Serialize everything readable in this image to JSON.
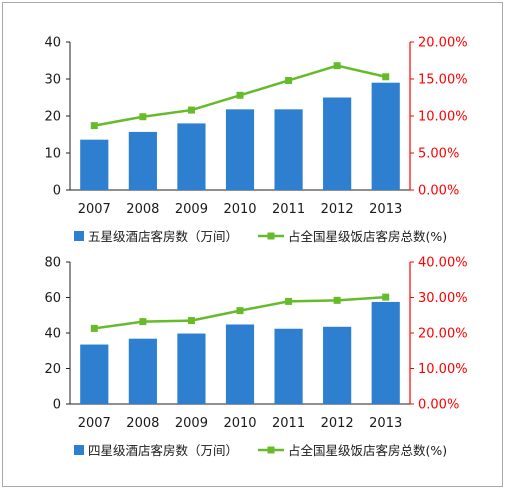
{
  "colors": {
    "bar": "#2e7fd0",
    "line": "#66bb2a",
    "right_axis": "#ff0000",
    "left_axis": "#1a1a1a"
  },
  "chart_data": [
    {
      "type": "bar",
      "categories": [
        "2007",
        "2008",
        "2009",
        "2010",
        "2011",
        "2012",
        "2013"
      ],
      "series": [
        {
          "name": "五星级酒店客房数（万间）",
          "type": "bar",
          "axis": "left",
          "values": [
            13.6,
            15.7,
            18.0,
            21.8,
            21.8,
            25.0,
            29.0
          ]
        },
        {
          "name": "占全国星级饭店客房总数(%)",
          "type": "line",
          "axis": "right",
          "values": [
            8.7,
            9.9,
            10.8,
            12.8,
            14.8,
            16.8,
            15.3
          ]
        }
      ],
      "ylim": [
        0,
        40
      ],
      "yticks": [
        "0",
        "10",
        "20",
        "30",
        "40"
      ],
      "y2lim": [
        0,
        20
      ],
      "y2ticks": [
        "0.00%",
        "5.00%",
        "10.00%",
        "15.00%",
        "20.00%"
      ],
      "legend": "bottom"
    },
    {
      "type": "bar",
      "categories": [
        "2007",
        "2008",
        "2009",
        "2010",
        "2011",
        "2012",
        "2013"
      ],
      "series": [
        {
          "name": "四星级酒店客房数（万间）",
          "type": "bar",
          "axis": "left",
          "values": [
            33.5,
            36.8,
            39.7,
            44.8,
            42.4,
            43.5,
            57.5
          ]
        },
        {
          "name": "占全国星级饭店客房总数(%)",
          "type": "line",
          "axis": "right",
          "values": [
            21.3,
            23.2,
            23.5,
            26.3,
            28.9,
            29.2,
            30.1
          ]
        }
      ],
      "ylim": [
        0,
        80
      ],
      "yticks": [
        "0",
        "20",
        "40",
        "60",
        "80"
      ],
      "y2lim": [
        0,
        40
      ],
      "y2ticks": [
        "0.00%",
        "10.00%",
        "20.00%",
        "30.00%",
        "40.00%"
      ],
      "legend": "bottom"
    }
  ]
}
